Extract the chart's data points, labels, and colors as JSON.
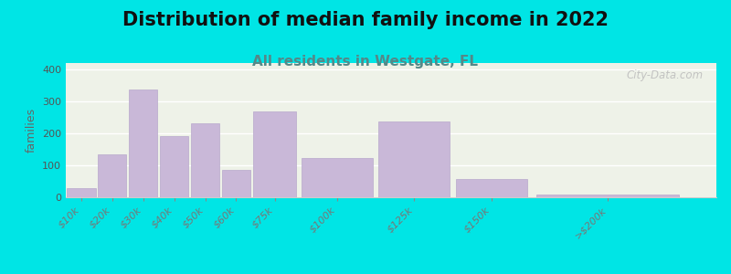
{
  "title": "Distribution of median family income in 2022",
  "subtitle": "All residents in Westgate, FL",
  "ylabel": "families",
  "categories": [
    "$10k",
    "$20k",
    "$30k",
    "$40k",
    "$50k",
    "$60k",
    "$75k",
    "$100k",
    "$125k",
    "$150k",
    ">$200k"
  ],
  "values": [
    28,
    135,
    338,
    192,
    232,
    87,
    268,
    122,
    237,
    57,
    10
  ],
  "bin_left": [
    0,
    10,
    20,
    30,
    40,
    50,
    60,
    75,
    100,
    125,
    150
  ],
  "bin_right": [
    10,
    20,
    30,
    40,
    50,
    60,
    75,
    100,
    125,
    150,
    200
  ],
  "bar_color": "#c9b8d8",
  "bar_edge_color": "#b8a8cc",
  "background_outer": "#00e5e5",
  "background_plot": "#eef2e8",
  "title_fontsize": 15,
  "subtitle_fontsize": 11,
  "subtitle_color": "#558888",
  "ylabel_fontsize": 9,
  "ylabel_color": "#666666",
  "tick_label_fontsize": 8,
  "yticks": [
    0,
    100,
    200,
    300,
    400
  ],
  "ylim": [
    0,
    420
  ],
  "xlim": [
    0,
    210
  ],
  "watermark": "City-Data.com"
}
